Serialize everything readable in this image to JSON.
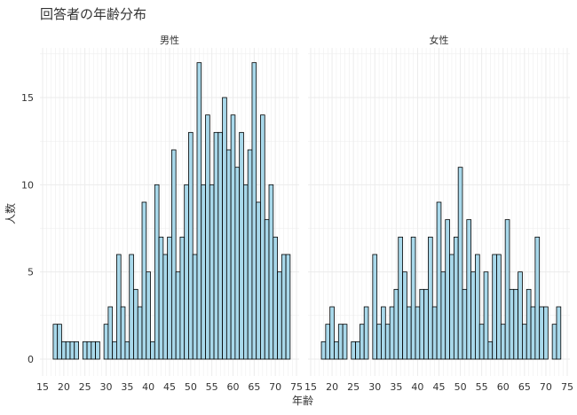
{
  "title": "回答者の年齢分布",
  "colors": {
    "bar_fill": "#a8d8ea",
    "bar_stroke": "#000000",
    "panel_bg": "#ffffff",
    "grid": "#ebebeb",
    "text": "#333333"
  },
  "chart_data": {
    "type": "bar",
    "facet": "histogram by age, faceted by sex",
    "title": "回答者の年齢分布",
    "xlabel": "年齢",
    "ylabel": "人数",
    "xlim": [
      15,
      75
    ],
    "ylim": [
      0,
      17.5
    ],
    "xticks": [
      15,
      20,
      25,
      30,
      35,
      40,
      45,
      50,
      55,
      60,
      65,
      70,
      75
    ],
    "yticks": [
      0,
      5,
      10,
      15
    ],
    "grid": true,
    "panels": [
      {
        "label": "男性",
        "ages": [
          18,
          19,
          20,
          21,
          22,
          23,
          24,
          25,
          26,
          27,
          28,
          29,
          30,
          31,
          32,
          33,
          34,
          35,
          36,
          37,
          38,
          39,
          40,
          41,
          42,
          43,
          44,
          45,
          46,
          47,
          48,
          49,
          50,
          51,
          52,
          53,
          54,
          55,
          56,
          57,
          58,
          59,
          60,
          61,
          62,
          63,
          64,
          65,
          66,
          67,
          68,
          69,
          70,
          71,
          72,
          73,
          74
        ],
        "values": [
          2,
          2,
          1,
          1,
          1,
          1,
          0,
          1,
          1,
          1,
          1,
          0,
          2,
          3,
          1,
          6,
          3,
          1,
          6,
          4,
          3,
          9,
          5,
          1,
          10,
          7,
          6,
          7,
          12,
          5,
          7,
          10,
          13,
          6,
          17,
          10,
          14,
          10,
          13,
          13,
          15,
          12,
          14,
          11,
          13,
          10,
          12,
          17,
          9,
          14,
          8,
          10,
          7,
          5,
          6,
          6,
          0
        ]
      },
      {
        "label": "女性",
        "ages": [
          18,
          19,
          20,
          21,
          22,
          23,
          24,
          25,
          26,
          27,
          28,
          29,
          30,
          31,
          32,
          33,
          34,
          35,
          36,
          37,
          38,
          39,
          40,
          41,
          42,
          43,
          44,
          45,
          46,
          47,
          48,
          49,
          50,
          51,
          52,
          53,
          54,
          55,
          56,
          57,
          58,
          59,
          60,
          61,
          62,
          63,
          64,
          65,
          66,
          67,
          68,
          69,
          70,
          71,
          72,
          73,
          74
        ],
        "values": [
          1,
          2,
          3,
          1,
          2,
          2,
          0,
          1,
          1,
          2,
          3,
          0,
          6,
          2,
          3,
          2,
          3,
          4,
          7,
          5,
          3,
          7,
          3,
          4,
          4,
          7,
          3,
          9,
          5,
          8,
          6,
          7,
          11,
          4,
          8,
          5,
          6,
          2,
          5,
          1,
          6,
          6,
          2,
          8,
          4,
          4,
          5,
          2,
          4,
          3,
          7,
          3,
          3,
          0,
          2,
          3,
          0
        ]
      }
    ]
  }
}
